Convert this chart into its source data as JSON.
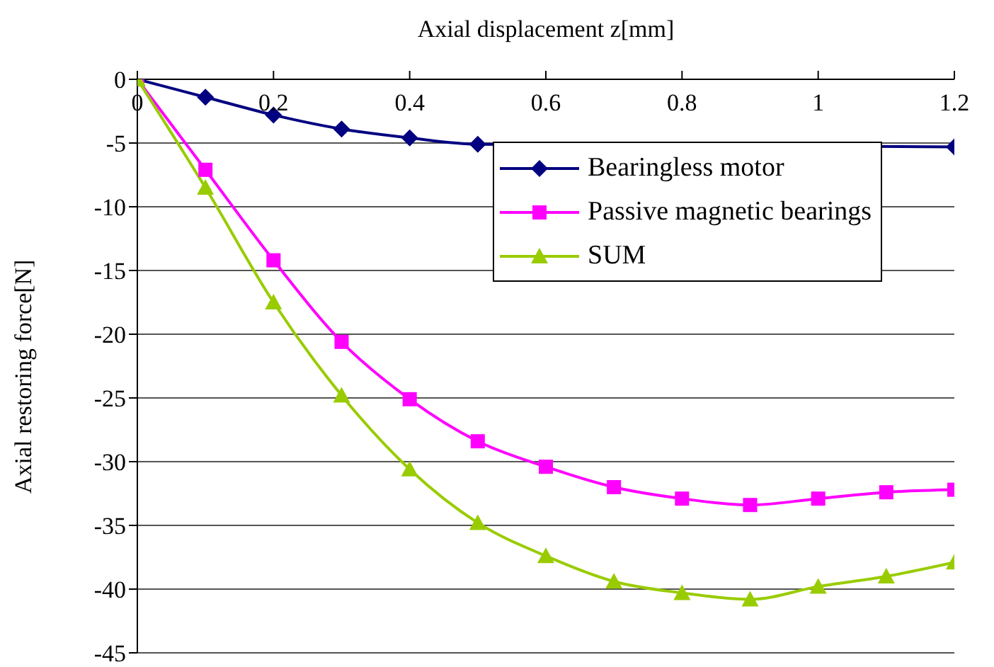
{
  "chart_data": {
    "type": "line",
    "xlabel": "Axial displacement z[mm]",
    "ylabel": "Axial restoring force[N]",
    "x": [
      0,
      0.1,
      0.2,
      0.3,
      0.4,
      0.5,
      0.6,
      0.7,
      0.8,
      0.9,
      1.0,
      1.1,
      1.2
    ],
    "series": [
      {
        "name": "Bearingless motor",
        "color": "#000080",
        "marker": "diamond",
        "values": [
          0,
          -1.4,
          -2.8,
          -3.9,
          -4.6,
          -5.1,
          null,
          null,
          null,
          null,
          null,
          null,
          -5.3
        ]
      },
      {
        "name": "Passive magnetic bearings",
        "color": "#ff00ff",
        "marker": "square",
        "values": [
          0,
          -7.1,
          -14.2,
          -20.6,
          -25.1,
          -28.4,
          -30.4,
          -32,
          -32.9,
          -33.4,
          -32.9,
          -32.4,
          -32.2
        ]
      },
      {
        "name": "SUM",
        "color": "#99cc00",
        "marker": "triangle",
        "values": [
          0,
          -8.5,
          -17.5,
          -24.8,
          -30.6,
          -34.8,
          -37.4,
          -39.4,
          -40.3,
          -40.8,
          -39.8,
          -39,
          -37.9
        ]
      }
    ],
    "xlim": [
      0,
      1.2
    ],
    "xticks": [
      0,
      0.2,
      0.4,
      0.6,
      0.8,
      1,
      1.2
    ],
    "ylim": [
      -45,
      0
    ],
    "yticks": [
      -45,
      -40,
      -35,
      -30,
      -25,
      -20,
      -15,
      -10,
      -5,
      0
    ],
    "grid": "y",
    "legend": "top right",
    "line_style": "solid"
  }
}
